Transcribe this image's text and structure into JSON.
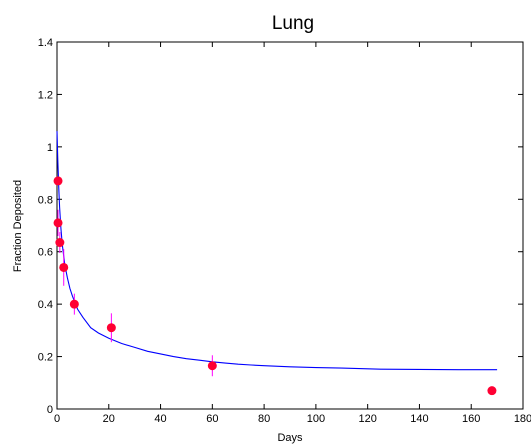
{
  "chart_data": {
    "type": "scatter",
    "title": "Lung",
    "xlabel": "Days",
    "ylabel": "Fraction Deposited",
    "xlim": [
      0,
      180
    ],
    "ylim": [
      0,
      1.4
    ],
    "xticks": [
      0,
      20,
      40,
      60,
      80,
      100,
      120,
      140,
      160,
      180
    ],
    "yticks": [
      0,
      0.2,
      0.4,
      0.6,
      0.8,
      1,
      1.2,
      1.4
    ],
    "xtick_labels": [
      "0",
      "20",
      "40",
      "60",
      "80",
      "100",
      "120",
      "140",
      "160",
      "180"
    ],
    "ytick_labels": [
      "0",
      "0.2",
      "0.4",
      "0.6",
      "0.8",
      "1",
      "1.2",
      "1.4"
    ],
    "grid": false,
    "series": [
      {
        "type": "scatter",
        "color": "#ff0033",
        "errorbar_color": "#ff00ff",
        "points": [
          {
            "x": 0.4,
            "y": 0.87,
            "err": 0.0
          },
          {
            "x": 0.4,
            "y": 0.71,
            "err": 0.05
          },
          {
            "x": 1.1,
            "y": 0.635,
            "err": 0.04
          },
          {
            "x": 2.6,
            "y": 0.54,
            "err": 0.07
          },
          {
            "x": 6.7,
            "y": 0.4,
            "err": 0.04
          },
          {
            "x": 21,
            "y": 0.31,
            "err": 0.055
          },
          {
            "x": 60,
            "y": 0.165,
            "err": 0.04
          },
          {
            "x": 168,
            "y": 0.07,
            "err": 0.0
          }
        ]
      },
      {
        "type": "line",
        "color": "#0000ff",
        "x": [
          0,
          0.3,
          0.7,
          1,
          1.5,
          2,
          3,
          4,
          5,
          6,
          8,
          10,
          13,
          16,
          20,
          25,
          30,
          35,
          40,
          45,
          50,
          55,
          60,
          65,
          70,
          75,
          80,
          90,
          100,
          110,
          125,
          140,
          155,
          170
        ],
        "y": [
          1.06,
          0.95,
          0.84,
          0.77,
          0.69,
          0.63,
          0.55,
          0.5,
          0.46,
          0.43,
          0.38,
          0.35,
          0.31,
          0.29,
          0.27,
          0.25,
          0.235,
          0.22,
          0.21,
          0.2,
          0.192,
          0.186,
          0.18,
          0.175,
          0.171,
          0.168,
          0.165,
          0.161,
          0.158,
          0.156,
          0.152,
          0.151,
          0.15,
          0.15
        ]
      }
    ]
  }
}
